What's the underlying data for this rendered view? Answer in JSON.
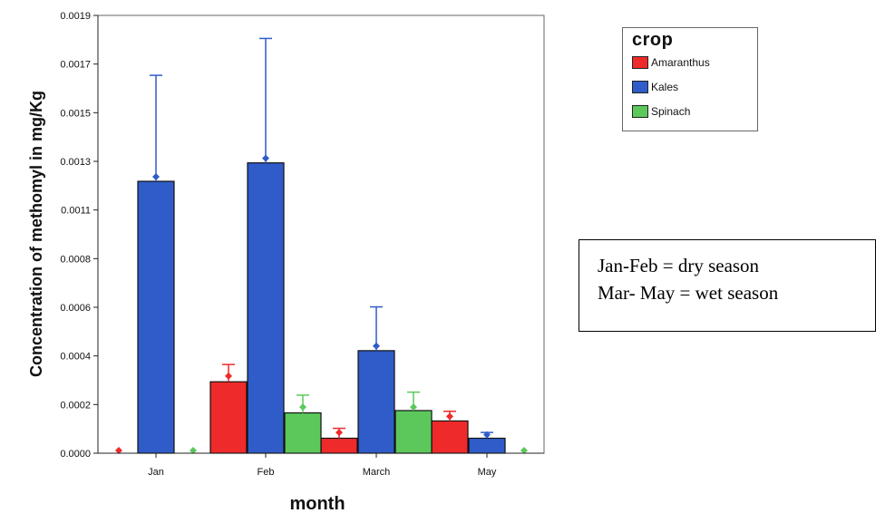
{
  "chart_data": {
    "type": "bar",
    "title": "",
    "xlabel": "month",
    "ylabel": "Concentration of methomyl in mg/Kg",
    "categories": [
      "Jan",
      "Feb",
      "March",
      "May"
    ],
    "ylim": [
      0,
      0.0019
    ],
    "yticks": [
      "0.0000",
      "0.0002",
      "0.0004",
      "0.0006",
      "0.0008",
      "0.0011",
      "0.0013",
      "0.0015",
      "0.0017",
      "0.0019"
    ],
    "series": [
      {
        "name": "Amaranthus",
        "color": "#ee2a2a",
        "values": [
          0.0,
          0.00031,
          6.5e-05,
          0.00014
        ],
        "error_upper": [
          0.0,
          0.000385,
          0.000108,
          0.000182
        ],
        "mean_marker": [
          0.0,
          0.000335,
          9e-05,
          0.00016
        ]
      },
      {
        "name": "Kales",
        "color": "#2f5cc8",
        "values": [
          0.00118,
          0.00126,
          0.000445,
          6.5e-05
        ],
        "error_upper": [
          0.00164,
          0.0018,
          0.000635,
          9e-05
        ],
        "mean_marker": [
          0.0012,
          0.00128,
          0.000465,
          8e-05
        ]
      },
      {
        "name": "Spinach",
        "color": "#5cc85c",
        "values": [
          0.0,
          0.000175,
          0.000185,
          0.0
        ],
        "error_upper": [
          0.0,
          0.000252,
          0.000265,
          0.0
        ],
        "mean_marker": [
          0.0,
          0.0002,
          0.0002,
          0.0
        ]
      }
    ],
    "legend": {
      "title": "crop",
      "position": "top-right"
    },
    "grid": false
  },
  "note": {
    "lines": [
      "Jan-Feb = dry season",
      "Mar- May = wet season"
    ]
  }
}
